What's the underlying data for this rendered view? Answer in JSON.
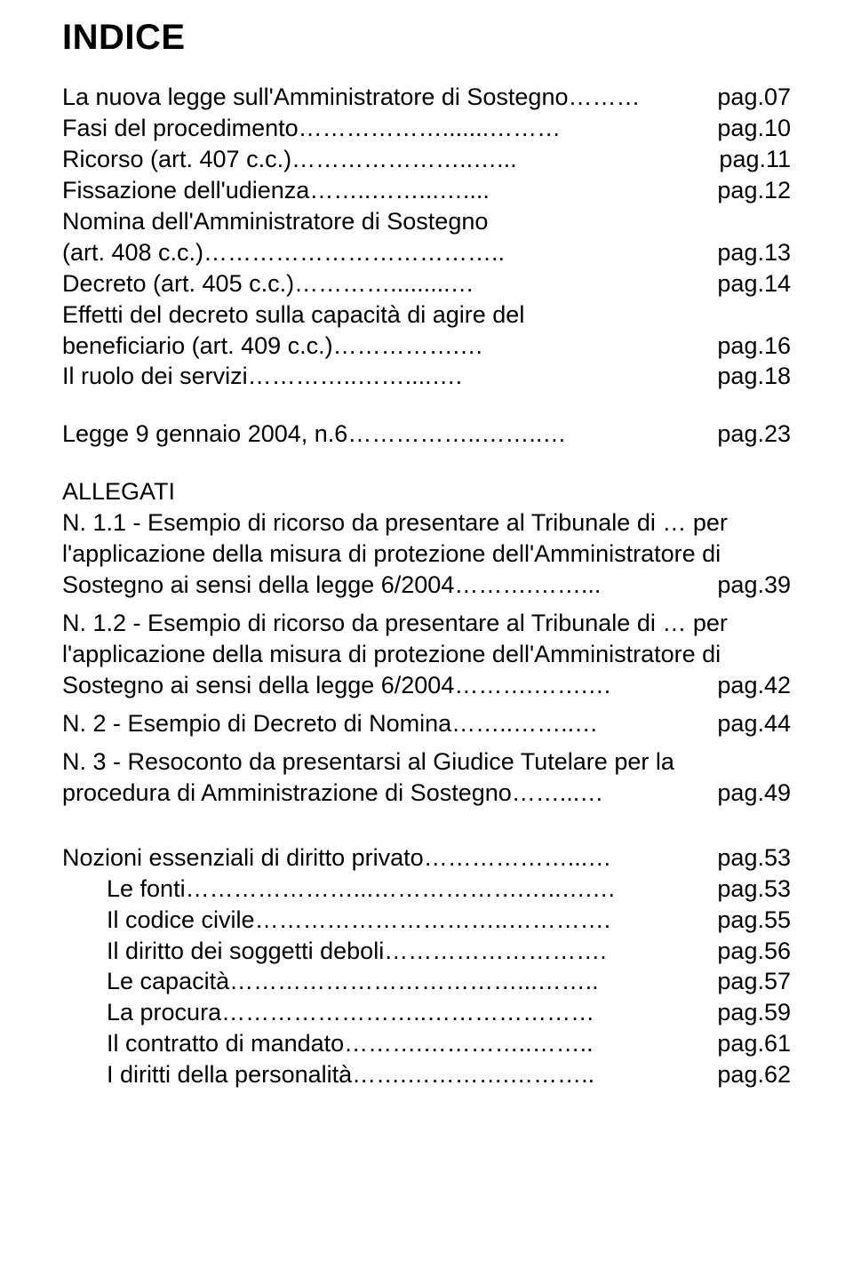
{
  "title": "INDICE",
  "entries": [
    {
      "text": "La nuova legge sull'Amministratore di Sostegno",
      "leader": "………",
      "page": "pag.07",
      "gapAfter": 0
    },
    {
      "text": "Fasi del procedimento",
      "leader": "……………….......………",
      "page": "pag.10",
      "gapAfter": 0
    },
    {
      "text": "Ricorso (art. 407 c.c.)",
      "leader": "…………………..…...",
      "page": "pag.11",
      "gapAfter": 0
    },
    {
      "text": "Fissazione dell'udienza",
      "leader": "……..……...…....",
      "page": "pag.12",
      "gapAfter": 0
    },
    {
      "text": "Nomina dell'Amministratore di Sostegno",
      "leader": "",
      "page": "",
      "gapAfter": 0
    },
    {
      "text": "(art. 408 c.c.)",
      "leader": "………………………………..",
      "page": "pag.13",
      "gapAfter": 0
    },
    {
      "text": "Decreto (art. 405 c.c.)",
      "leader": "………….........…",
      "page": "pag.14",
      "gapAfter": 0
    },
    {
      "text": "Effetti del decreto sulla capacità di agire del",
      "leader": "",
      "page": "",
      "gapAfter": 0
    },
    {
      "text": "beneficiario (art. 409 c.c.)",
      "leader": "…………….…",
      "page": "pag.16",
      "gapAfter": 0
    },
    {
      "text": "Il ruolo dei servizi",
      "leader": "…………..……....….",
      "page": "pag.18",
      "gapAfter": 30
    },
    {
      "text": "Legge 9 gennaio 2004, n.6",
      "leader": "……………..……..…",
      "page": "pag.23",
      "gapAfter": 30
    },
    {
      "text": "ALLEGATI",
      "leader": "",
      "page": "",
      "gapAfter": 0,
      "noJustify": true
    },
    {
      "text": "N. 1.1 - Esempio di ricorso da presentare al Tribunale di … per",
      "leader": "",
      "page": "",
      "gapAfter": 0
    },
    {
      "text": "l'applicazione della misura di protezione dell'Amministratore di",
      "leader": "",
      "page": "",
      "gapAfter": 0
    },
    {
      "text": "Sostegno ai sensi della legge 6/2004",
      "leader": "……….……...",
      "page": "pag.39",
      "gapAfter": 8
    },
    {
      "text": "N. 1.2 - Esempio di ricorso da presentare al Tribunale di … per",
      "leader": "",
      "page": "",
      "gapAfter": 0
    },
    {
      "text": "l'applicazione della misura di protezione dell'Amministratore di",
      "leader": "",
      "page": "",
      "gapAfter": 0
    },
    {
      "text": "Sostegno ai sensi della legge 6/2004",
      "leader": "……….…….…",
      "page": "pag.42",
      "gapAfter": 8
    },
    {
      "text": "N. 2 - Esempio di Decreto di Nomina",
      "leader": "……..……..…",
      "page": "pag.44",
      "gapAfter": 8
    },
    {
      "text": "N. 3 - Resoconto da presentarsi al Giudice Tutelare per la",
      "leader": "",
      "page": "",
      "gapAfter": 0
    },
    {
      "text": "procedura di Amministrazione di Sostegno",
      "leader": "……...…",
      "page": "pag.49",
      "gapAfter": 38
    },
    {
      "text": "Nozioni essenziali di diritto privato",
      "leader": "………………...…",
      "page": "pag.53",
      "gapAfter": 0
    },
    {
      "text": "Le fonti",
      "leader": "…………………...……………….…..….…",
      "page": "pag.53",
      "gapAfter": 0,
      "indent": true
    },
    {
      "text": "Il codice civile",
      "leader": "…………………………..………….",
      "page": "pag.55",
      "gapAfter": 0,
      "indent": true
    },
    {
      "text": "Il diritto dei soggetti deboli",
      "leader": "……………………….",
      "page": "pag.56",
      "gapAfter": 0,
      "indent": true
    },
    {
      "text": "Le capacità",
      "leader": "………………………………...……..",
      "page": "pag.57",
      "gapAfter": 0,
      "indent": true
    },
    {
      "text": "La procura",
      "leader": "……………………..…………………",
      "page": "pag.59",
      "gapAfter": 0,
      "indent": true
    },
    {
      "text": "Il contratto di mandato",
      "leader": "……….…………..……..",
      "page": "pag.61",
      "gapAfter": 0,
      "indent": true
    },
    {
      "text": "I diritti della personalità",
      "leader": "…….………….………..",
      "page": "pag.62",
      "gapAfter": 0,
      "indent": true
    }
  ]
}
